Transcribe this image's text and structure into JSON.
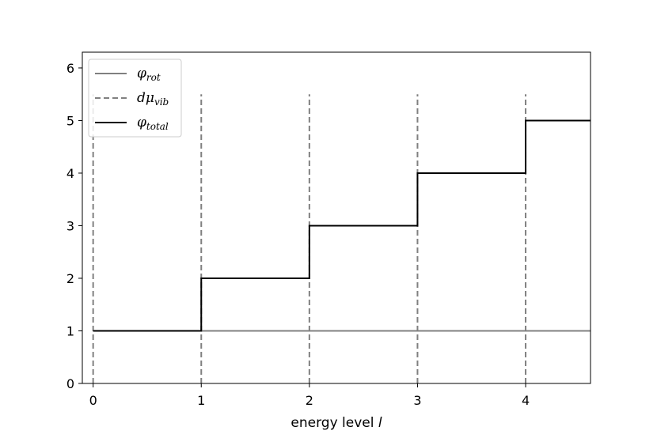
{
  "chart_data": {
    "type": "line",
    "xlabel_text": "energy level",
    "xlabel_var": "l",
    "ylabel": "",
    "title": "",
    "xlim": [
      -0.1,
      4.6
    ],
    "ylim": [
      0,
      6.3
    ],
    "xticks": [
      0,
      1,
      2,
      3,
      4
    ],
    "yticks": [
      0,
      1,
      2,
      3,
      4,
      5,
      6
    ],
    "grid": false,
    "legend": {
      "placement": "top-left",
      "entries": [
        {
          "base": "φ",
          "sub": "rot",
          "style": "solid",
          "color": "#808080"
        },
        {
          "base": "dμ",
          "sub": "vib",
          "style": "dashed",
          "color": "#808080"
        },
        {
          "base": "φ",
          "sub": "total",
          "style": "solid",
          "color": "#000000"
        }
      ]
    },
    "series": [
      {
        "id": "phi_rot",
        "kind": "horizontal",
        "y": 1,
        "color": "#808080"
      },
      {
        "id": "dmu_vib",
        "kind": "vlines",
        "x": [
          0,
          1,
          2,
          3,
          4
        ],
        "ymax": 5.5,
        "color": "#808080"
      },
      {
        "id": "phi_total",
        "kind": "step",
        "x": [
          0,
          1,
          1,
          2,
          2,
          3,
          3,
          4,
          4,
          4.6
        ],
        "y": [
          1,
          1,
          2,
          2,
          3,
          3,
          4,
          4,
          5,
          5
        ],
        "color": "#000000"
      }
    ]
  }
}
